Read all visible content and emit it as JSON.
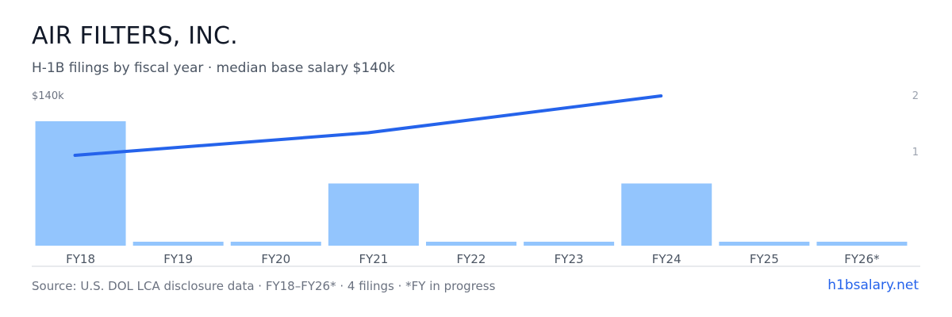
{
  "header": {
    "title": "AIR FILTERS, INC.",
    "subtitle": "H-1B filings by fiscal year · median base salary $140k"
  },
  "footer": {
    "source": "Source: U.S. DOL LCA disclosure data · FY18–FY26* · 4 filings · *FY in progress",
    "brand": "h1bsalary.net"
  },
  "colors": {
    "bar": "#93c5fd",
    "line": "#2563eb",
    "axis": "#d1d5db"
  },
  "chart_data": {
    "type": "bar",
    "categories": [
      "FY18",
      "FY19",
      "FY20",
      "FY21",
      "FY22",
      "FY23",
      "FY24",
      "FY25",
      "FY26*"
    ],
    "series": [
      {
        "values": [
          1,
          0,
          0,
          0.5,
          0,
          0,
          0.5,
          0,
          0
        ]
      }
    ],
    "line_series": {
      "points": [
        {
          "category": "FY18",
          "value": 1.0
        },
        {
          "category": "FY21",
          "value": 1.38
        },
        {
          "category": "FY24",
          "value": 2.0
        }
      ]
    },
    "left_axis_label": "$140k",
    "right_ticks": [
      "2",
      "1"
    ],
    "ylim": [
      0,
      2
    ]
  }
}
